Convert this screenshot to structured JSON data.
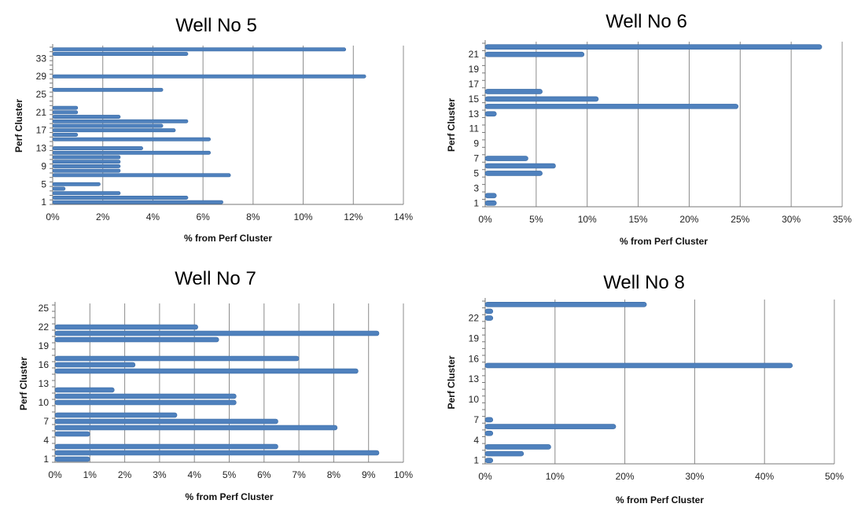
{
  "chart_data": [
    {
      "type": "bar",
      "orientation": "horizontal",
      "title": "Well No 5",
      "xlabel": "% from Perf Cluster",
      "ylabel": "Perf Cluster",
      "xlim": [
        0,
        14
      ],
      "x_ticks": [
        "0%",
        "2%",
        "4%",
        "6%",
        "8%",
        "10%",
        "12%",
        "14%"
      ],
      "y_ticks": [
        "1",
        "5",
        "9",
        "13",
        "17",
        "21",
        "25",
        "29",
        "33"
      ],
      "categories": [
        "1",
        "2",
        "3",
        "4",
        "5",
        "6",
        "7",
        "8",
        "9",
        "10",
        "11",
        "12",
        "13",
        "14",
        "15",
        "16",
        "17",
        "18",
        "19",
        "20",
        "21",
        "22",
        "23",
        "24",
        "25",
        "26",
        "27",
        "28",
        "29",
        "30",
        "31",
        "32",
        "33",
        "34",
        "35"
      ],
      "values": [
        6.8,
        5.4,
        2.7,
        0.5,
        1.9,
        0,
        7.1,
        2.7,
        2.7,
        2.7,
        2.7,
        6.3,
        3.6,
        0,
        6.3,
        1.0,
        4.9,
        4.4,
        5.4,
        2.7,
        1.0,
        1.0,
        0,
        0,
        0,
        4.4,
        0,
        0,
        12.5,
        0,
        0,
        0,
        0,
        5.4,
        11.7
      ]
    },
    {
      "type": "bar",
      "orientation": "horizontal",
      "title": "Well No 6",
      "xlabel": "% from Perf Cluster",
      "ylabel": "Perf Cluster",
      "xlim": [
        0,
        35
      ],
      "x_ticks": [
        "0%",
        "5%",
        "10%",
        "15%",
        "20%",
        "25%",
        "30%",
        "35%"
      ],
      "y_ticks": [
        "1",
        "3",
        "5",
        "7",
        "9",
        "11",
        "13",
        "15",
        "17",
        "19",
        "21"
      ],
      "categories": [
        "1",
        "2",
        "3",
        "4",
        "5",
        "6",
        "7",
        "8",
        "9",
        "10",
        "11",
        "12",
        "13",
        "14",
        "15",
        "16",
        "17",
        "18",
        "19",
        "20",
        "21",
        "22"
      ],
      "values": [
        1.1,
        1.1,
        0,
        0,
        5.6,
        6.9,
        4.2,
        0,
        0,
        0,
        0,
        0,
        1.1,
        24.8,
        11.1,
        5.6,
        0,
        0,
        0,
        0,
        9.7,
        33.0
      ]
    },
    {
      "type": "bar",
      "orientation": "horizontal",
      "title": "Well No 7",
      "xlabel": "% from Perf Cluster",
      "ylabel": "Perf Cluster",
      "xlim": [
        0,
        10
      ],
      "x_ticks": [
        "0%",
        "1%",
        "2%",
        "3%",
        "4%",
        "5%",
        "6%",
        "7%",
        "8%",
        "9%",
        "10%"
      ],
      "y_ticks": [
        "1",
        "4",
        "7",
        "10",
        "13",
        "16",
        "19",
        "22",
        "25"
      ],
      "categories": [
        "1",
        "2",
        "3",
        "4",
        "5",
        "6",
        "7",
        "8",
        "9",
        "10",
        "11",
        "12",
        "13",
        "14",
        "15",
        "16",
        "17",
        "18",
        "19",
        "20",
        "21",
        "22",
        "23",
        "24",
        "25"
      ],
      "values": [
        1.0,
        9.3,
        6.4,
        0,
        1.0,
        8.1,
        6.4,
        3.5,
        0,
        5.2,
        5.2,
        1.7,
        0,
        0,
        8.7,
        2.3,
        7.0,
        0,
        0,
        4.7,
        9.3,
        4.1,
        0,
        0,
        0
      ]
    },
    {
      "type": "bar",
      "orientation": "horizontal",
      "title": "Well No 8",
      "xlabel": "% from Perf Cluster",
      "ylabel": "Perf Cluster",
      "xlim": [
        0,
        50
      ],
      "x_ticks": [
        "0%",
        "10%",
        "20%",
        "30%",
        "40%",
        "50%"
      ],
      "y_ticks": [
        "1",
        "4",
        "7",
        "10",
        "13",
        "16",
        "19",
        "22"
      ],
      "categories": [
        "1",
        "2",
        "3",
        "4",
        "5",
        "6",
        "7",
        "8",
        "9",
        "10",
        "11",
        "12",
        "13",
        "14",
        "15",
        "16",
        "17",
        "18",
        "19",
        "20",
        "21",
        "22",
        "23",
        "24"
      ],
      "values": [
        1.1,
        5.5,
        9.4,
        0,
        1.1,
        18.7,
        1.1,
        0,
        0,
        0,
        0,
        0,
        0,
        0,
        44.0,
        0,
        0,
        0,
        0,
        0,
        0,
        1.1,
        1.1,
        23.1
      ]
    }
  ]
}
